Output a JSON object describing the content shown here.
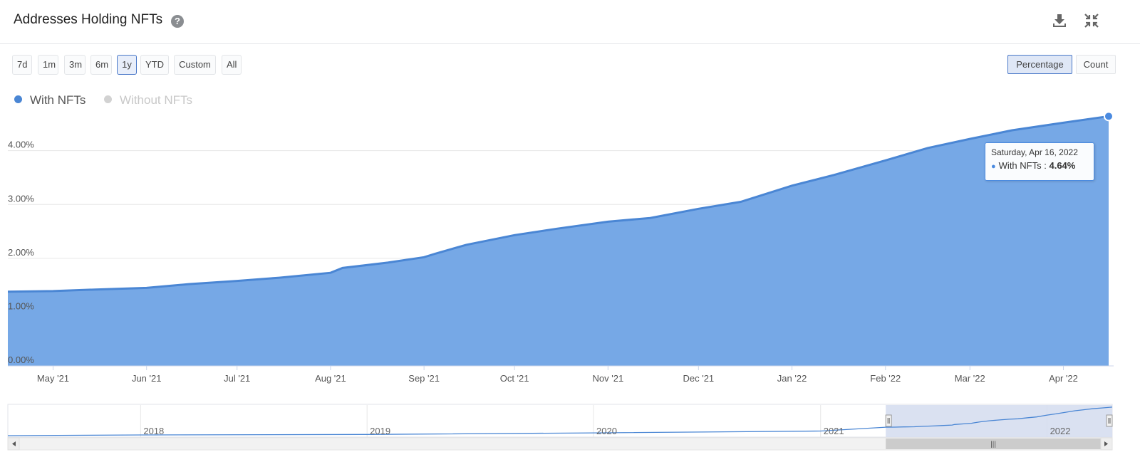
{
  "header": {
    "title": "Addresses Holding NFTs",
    "help_icon": "?",
    "download_icon": "download-icon",
    "collapse_icon": "collapse-icon"
  },
  "range_buttons": [
    {
      "label": "7d"
    },
    {
      "label": "1m"
    },
    {
      "label": "3m"
    },
    {
      "label": "6m"
    },
    {
      "label": "1y",
      "active": true
    },
    {
      "label": "YTD"
    },
    {
      "label": "Custom"
    },
    {
      "label": "All"
    }
  ],
  "mode_buttons": [
    {
      "label": "Percentage",
      "active": true
    },
    {
      "label": "Count"
    }
  ],
  "tooltip": {
    "date": "Saturday, Apr 16, 2022",
    "series": "With NFTs",
    "separator": ":",
    "value": "4.64%"
  },
  "colors": {
    "accent": "#4a8ae0",
    "area": "#76a8e6",
    "line": "#4a86d4",
    "inactive": "#c8c8c8"
  },
  "chart_data": {
    "type": "area",
    "legend": [
      {
        "name": "With NFTs",
        "visible": true
      },
      {
        "name": "Without NFTs",
        "visible": false
      }
    ],
    "legend_position": "top-left",
    "grid": true,
    "yaxis": {
      "ticks": [
        "0.00%",
        "1.00%",
        "2.00%",
        "3.00%",
        "4.00%"
      ],
      "tick_values": [
        0,
        1,
        2,
        3,
        4
      ],
      "range": [
        0,
        4.75
      ]
    },
    "xaxis": {
      "ticks": [
        {
          "label": "May '21",
          "date": "2021-05-01"
        },
        {
          "label": "Jun '21",
          "date": "2021-06-01"
        },
        {
          "label": "Jul '21",
          "date": "2021-07-01"
        },
        {
          "label": "Aug '21",
          "date": "2021-08-01"
        },
        {
          "label": "Sep '21",
          "date": "2021-09-01"
        },
        {
          "label": "Oct '21",
          "date": "2021-10-01"
        },
        {
          "label": "Nov '21",
          "date": "2021-11-01"
        },
        {
          "label": "Dec '21",
          "date": "2021-12-01"
        },
        {
          "label": "Jan '22",
          "date": "2022-01-01"
        },
        {
          "label": "Feb '22",
          "date": "2022-02-01"
        },
        {
          "label": "Mar '22",
          "date": "2022-03-01"
        },
        {
          "label": "Apr '22",
          "date": "2022-04-01"
        }
      ],
      "range": [
        "2021-04-16",
        "2022-04-16"
      ]
    },
    "series": [
      {
        "name": "With NFTs",
        "unit": "%",
        "points": [
          {
            "date": "2021-04-16",
            "value": 1.38
          },
          {
            "date": "2021-05-01",
            "value": 1.39
          },
          {
            "date": "2021-05-15",
            "value": 1.42
          },
          {
            "date": "2021-06-01",
            "value": 1.45
          },
          {
            "date": "2021-06-15",
            "value": 1.52
          },
          {
            "date": "2021-07-01",
            "value": 1.58
          },
          {
            "date": "2021-07-15",
            "value": 1.64
          },
          {
            "date": "2021-08-01",
            "value": 1.73
          },
          {
            "date": "2021-08-05",
            "value": 1.82
          },
          {
            "date": "2021-08-20",
            "value": 1.92
          },
          {
            "date": "2021-09-01",
            "value": 2.02
          },
          {
            "date": "2021-09-05",
            "value": 2.09
          },
          {
            "date": "2021-09-15",
            "value": 2.25
          },
          {
            "date": "2021-10-01",
            "value": 2.43
          },
          {
            "date": "2021-10-15",
            "value": 2.55
          },
          {
            "date": "2021-11-01",
            "value": 2.68
          },
          {
            "date": "2021-11-15",
            "value": 2.75
          },
          {
            "date": "2021-12-01",
            "value": 2.92
          },
          {
            "date": "2021-12-15",
            "value": 3.05
          },
          {
            "date": "2022-01-01",
            "value": 3.35
          },
          {
            "date": "2022-01-15",
            "value": 3.55
          },
          {
            "date": "2022-02-01",
            "value": 3.82
          },
          {
            "date": "2022-02-15",
            "value": 4.05
          },
          {
            "date": "2022-03-01",
            "value": 4.22
          },
          {
            "date": "2022-03-15",
            "value": 4.38
          },
          {
            "date": "2022-04-01",
            "value": 4.52
          },
          {
            "date": "2022-04-16",
            "value": 4.64
          }
        ]
      }
    ]
  },
  "navigator": {
    "labels": [
      {
        "label": "2018",
        "date": "2018-01-01"
      },
      {
        "label": "2019",
        "date": "2019-01-01"
      },
      {
        "label": "2020",
        "date": "2020-01-01"
      },
      {
        "label": "2021",
        "date": "2021-01-01"
      },
      {
        "label": "2022",
        "date": "2022-01-01"
      }
    ],
    "range": [
      "2017-06-01",
      "2022-04-16"
    ],
    "selected": [
      "2021-04-16",
      "2022-04-16"
    ],
    "handle_grip": "|||"
  }
}
